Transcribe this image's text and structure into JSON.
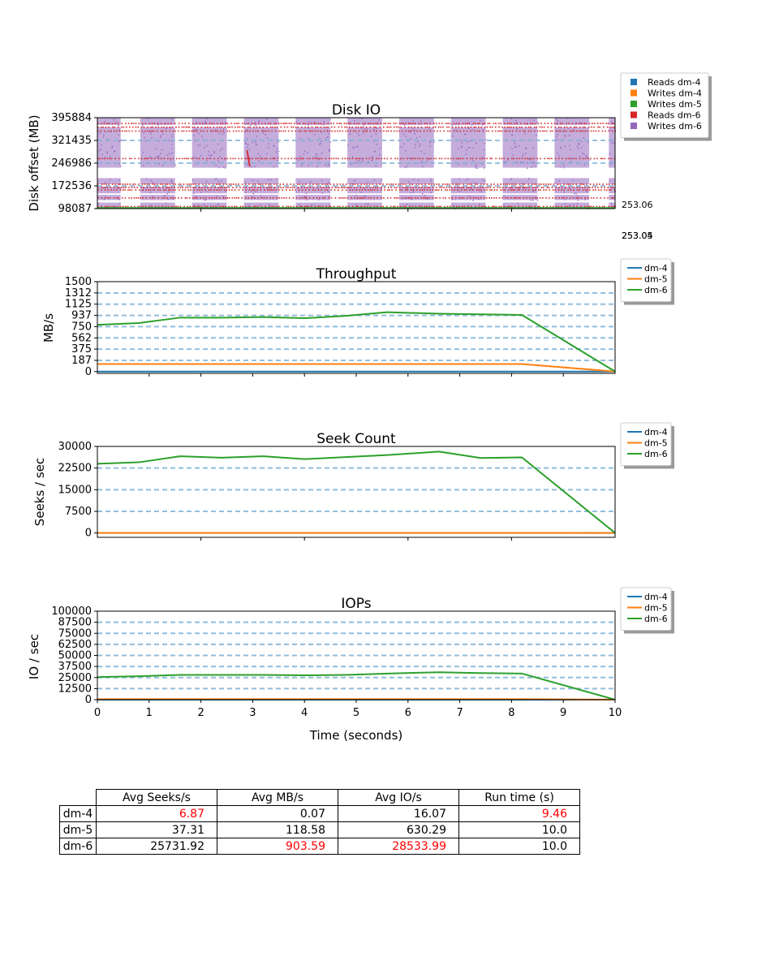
{
  "colors": {
    "dm-4": "#1f77b4",
    "dm-5": "#ff7f0e",
    "dm-6": "#2ca02c",
    "reads_dm6": "#d62728",
    "writes_dm6": "#9467bd",
    "grid": "#7fb3d5",
    "highlight": "#ff0000"
  },
  "side_labels": [
    "253.06",
    "253.05",
    "253.04"
  ],
  "chart_data": [
    {
      "type": "scatter",
      "title": "Disk IO",
      "ylabel": "Disk offset (MB)",
      "xlim": [
        0,
        10
      ],
      "ylim": [
        98087,
        395884
      ],
      "ytick_labels": [
        "395884",
        "321435",
        "246986",
        "172536",
        "98087"
      ],
      "legend": [
        "Reads dm-4",
        "Writes dm-4",
        "Writes dm-5",
        "Reads dm-6",
        "Writes dm-6"
      ],
      "legend_placement": "top-right outside",
      "write_bursts_dm6": [
        [
          0.0,
          0.45
        ],
        [
          0.83,
          1.5
        ],
        [
          1.83,
          2.5
        ],
        [
          2.83,
          3.5
        ],
        [
          3.83,
          4.5
        ],
        [
          4.83,
          5.5
        ],
        [
          5.83,
          6.5
        ],
        [
          6.83,
          7.5
        ],
        [
          7.83,
          8.5
        ],
        [
          8.83,
          9.5
        ],
        [
          9.88,
          10.0
        ]
      ],
      "offset_bands_dm6": [
        [
          98087,
          118000
        ],
        [
          126000,
          143000
        ],
        [
          148000,
          170000
        ],
        [
          178000,
          198000
        ],
        [
          232000,
          365000
        ],
        [
          372000,
          395884
        ]
      ],
      "read_lines_dm6": [
        105000,
        133000,
        159000,
        167000,
        178000,
        262000,
        352000,
        365000,
        377000
      ]
    },
    {
      "type": "line",
      "title": "Throughput",
      "ylabel": "MB/s",
      "x": [
        0,
        0.8,
        1.6,
        2.4,
        3.2,
        4.0,
        4.8,
        5.6,
        6.6,
        7.4,
        8.2,
        10
      ],
      "ylim": [
        -30,
        1500
      ],
      "ytick_labels": [
        "1500",
        "1312",
        "1125",
        "937",
        "750",
        "562",
        "375",
        "187",
        "0"
      ],
      "ytick_values": [
        1500,
        1312,
        1125,
        937,
        750,
        562,
        375,
        187,
        0
      ],
      "grid": true,
      "legend_placement": "top-right outside",
      "series": [
        {
          "name": "dm-4",
          "values": [
            0,
            0,
            0,
            0,
            0,
            0,
            0,
            0,
            0,
            0,
            0,
            0
          ]
        },
        {
          "name": "dm-5",
          "values": [
            125,
            125,
            125,
            125,
            125,
            125,
            125,
            125,
            125,
            125,
            125,
            0
          ]
        },
        {
          "name": "dm-6",
          "values": [
            780,
            810,
            900,
            900,
            910,
            890,
            930,
            990,
            965,
            955,
            945,
            0
          ]
        }
      ]
    },
    {
      "type": "line",
      "title": "Seek Count",
      "ylabel": "Seeks / sec",
      "x": [
        0,
        0.8,
        1.6,
        2.4,
        3.2,
        4.0,
        4.8,
        5.6,
        6.6,
        7.4,
        8.2,
        10
      ],
      "ylim": [
        -1500,
        30000
      ],
      "ytick_labels": [
        "30000",
        "22500",
        "15000",
        "7500",
        "0"
      ],
      "ytick_values": [
        30000,
        22500,
        15000,
        7500,
        0
      ],
      "grid": true,
      "legend_placement": "top-right outside",
      "series": [
        {
          "name": "dm-4",
          "values": [
            0,
            0,
            0,
            0,
            0,
            0,
            0,
            0,
            0,
            0,
            0,
            0
          ]
        },
        {
          "name": "dm-5",
          "values": [
            40,
            40,
            40,
            40,
            40,
            40,
            40,
            40,
            40,
            40,
            40,
            0
          ]
        },
        {
          "name": "dm-6",
          "values": [
            24000,
            24500,
            26600,
            26100,
            26600,
            25600,
            26300,
            27000,
            28200,
            26000,
            26200,
            0
          ]
        }
      ]
    },
    {
      "type": "line",
      "title": "IOPs",
      "ylabel": "IO / sec",
      "xlabel": "Time (seconds)",
      "x": [
        0,
        0.8,
        1.6,
        2.4,
        3.2,
        4.0,
        4.8,
        5.6,
        6.6,
        7.4,
        8.2,
        10
      ],
      "xlim": [
        0,
        10
      ],
      "xtick_labels": [
        "0",
        "1",
        "2",
        "3",
        "4",
        "5",
        "6",
        "7",
        "8",
        "9",
        "10"
      ],
      "ylim": [
        0,
        100000
      ],
      "ytick_labels": [
        "100000",
        "87500",
        "75000",
        "62500",
        "50000",
        "37500",
        "25000",
        "12500",
        "0"
      ],
      "ytick_values": [
        100000,
        87500,
        75000,
        62500,
        50000,
        37500,
        25000,
        12500,
        0
      ],
      "grid": true,
      "legend_placement": "top-right outside",
      "series": [
        {
          "name": "dm-4",
          "values": [
            0,
            0,
            0,
            0,
            0,
            0,
            0,
            0,
            0,
            0,
            0,
            0
          ]
        },
        {
          "name": "dm-5",
          "values": [
            620,
            620,
            630,
            630,
            630,
            630,
            630,
            630,
            630,
            630,
            630,
            0
          ]
        },
        {
          "name": "dm-6",
          "values": [
            25500,
            26500,
            28000,
            28000,
            28000,
            27500,
            28000,
            29500,
            31000,
            30000,
            29500,
            0
          ]
        }
      ]
    },
    {
      "type": "table",
      "columns": [
        "Avg Seeks/s",
        "Avg MB/s",
        "Avg IO/s",
        "Run time (s)"
      ],
      "rows": [
        {
          "label": "dm-4",
          "cells": [
            "6.87",
            "0.07",
            "16.07",
            "9.46"
          ],
          "highlight": [
            true,
            false,
            false,
            true
          ]
        },
        {
          "label": "dm-5",
          "cells": [
            "37.31",
            "118.58",
            "630.29",
            "10.0"
          ],
          "highlight": [
            false,
            false,
            false,
            false
          ]
        },
        {
          "label": "dm-6",
          "cells": [
            "25731.92",
            "903.59",
            "28533.99",
            "10.0"
          ],
          "highlight": [
            false,
            true,
            true,
            false
          ]
        }
      ]
    }
  ]
}
